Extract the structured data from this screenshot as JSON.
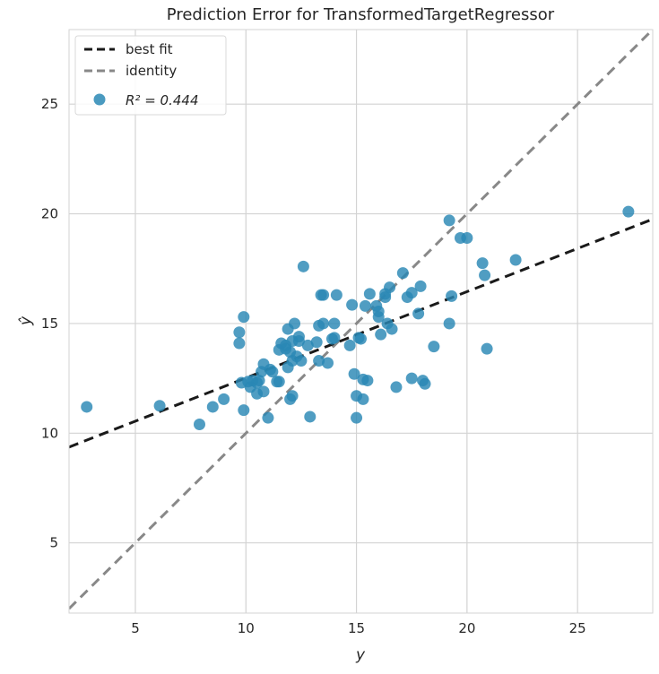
{
  "chart_data": {
    "type": "scatter",
    "title": "Prediction Error for TransformedTargetRegressor",
    "xlabel": "y",
    "ylabel": "ŷ",
    "xlim": [
      2,
      28.4
    ],
    "ylim": [
      1.8,
      28.4
    ],
    "xticks": [
      5,
      10,
      15,
      20,
      25
    ],
    "yticks": [
      5,
      10,
      15,
      20,
      25
    ],
    "grid": true,
    "legend_position": "top-left",
    "colors": {
      "points": "#2a88b5",
      "best_fit": "#1a1a1a",
      "identity": "#888888",
      "grid": "#d3d3d3",
      "background": "#ffffff"
    },
    "legend": [
      {
        "label": "best fit",
        "kind": "line",
        "style": "dashed",
        "color": "#1a1a1a"
      },
      {
        "label": "identity",
        "kind": "line",
        "style": "dashed",
        "color": "#888888"
      },
      {
        "label": "R² = 0.444",
        "kind": "marker",
        "color": "#2a88b5"
      }
    ],
    "best_fit": {
      "slope": 0.3936,
      "intercept": 8.58
    },
    "identity": {
      "slope": 1,
      "intercept": 0
    },
    "points": [
      [
        2.8,
        11.2
      ],
      [
        6.1,
        11.25
      ],
      [
        7.9,
        10.4
      ],
      [
        8.5,
        11.2
      ],
      [
        9.0,
        11.55
      ],
      [
        9.7,
        14.6
      ],
      [
        9.7,
        14.1
      ],
      [
        9.8,
        12.3
      ],
      [
        9.9,
        15.3
      ],
      [
        9.9,
        11.05
      ],
      [
        10.1,
        12.35
      ],
      [
        10.2,
        12.1
      ],
      [
        10.3,
        12.4
      ],
      [
        10.5,
        12.3
      ],
      [
        10.5,
        11.8
      ],
      [
        10.6,
        12.4
      ],
      [
        10.7,
        12.8
      ],
      [
        10.8,
        11.9
      ],
      [
        10.8,
        13.15
      ],
      [
        11.0,
        10.7
      ],
      [
        11.1,
        12.9
      ],
      [
        11.2,
        12.8
      ],
      [
        11.4,
        12.35
      ],
      [
        11.5,
        13.8
      ],
      [
        11.5,
        12.35
      ],
      [
        11.6,
        14.1
      ],
      [
        11.8,
        13.85
      ],
      [
        11.8,
        14.0
      ],
      [
        11.9,
        13.0
      ],
      [
        11.9,
        14.75
      ],
      [
        12.0,
        11.55
      ],
      [
        12.0,
        13.7
      ],
      [
        12.1,
        14.2
      ],
      [
        12.1,
        11.7
      ],
      [
        12.1,
        13.3
      ],
      [
        12.2,
        15.0
      ],
      [
        12.3,
        13.5
      ],
      [
        12.4,
        14.2
      ],
      [
        12.4,
        14.4
      ],
      [
        12.5,
        13.3
      ],
      [
        12.6,
        17.6
      ],
      [
        12.8,
        14.0
      ],
      [
        12.9,
        10.75
      ],
      [
        13.2,
        14.15
      ],
      [
        13.3,
        13.3
      ],
      [
        13.3,
        14.9
      ],
      [
        13.4,
        16.3
      ],
      [
        13.5,
        16.3
      ],
      [
        13.5,
        15.0
      ],
      [
        13.7,
        13.2
      ],
      [
        13.9,
        14.3
      ],
      [
        14.0,
        14.35
      ],
      [
        14.0,
        15.0
      ],
      [
        14.1,
        16.3
      ],
      [
        14.7,
        14.0
      ],
      [
        14.8,
        15.85
      ],
      [
        14.9,
        12.7
      ],
      [
        15.0,
        11.7
      ],
      [
        15.0,
        10.7
      ],
      [
        15.1,
        14.35
      ],
      [
        15.2,
        14.3
      ],
      [
        15.3,
        11.55
      ],
      [
        15.3,
        12.45
      ],
      [
        15.4,
        15.8
      ],
      [
        15.5,
        12.4
      ],
      [
        15.6,
        16.35
      ],
      [
        15.9,
        15.8
      ],
      [
        16.0,
        15.55
      ],
      [
        16.0,
        15.3
      ],
      [
        16.1,
        14.5
      ],
      [
        16.3,
        16.2
      ],
      [
        16.3,
        16.35
      ],
      [
        16.4,
        15.0
      ],
      [
        16.5,
        16.65
      ],
      [
        16.6,
        14.75
      ],
      [
        16.8,
        12.1
      ],
      [
        17.1,
        17.3
      ],
      [
        17.3,
        16.2
      ],
      [
        17.5,
        12.5
      ],
      [
        17.5,
        16.4
      ],
      [
        17.8,
        15.45
      ],
      [
        17.9,
        16.7
      ],
      [
        18.0,
        12.4
      ],
      [
        18.1,
        12.25
      ],
      [
        18.5,
        13.95
      ],
      [
        19.2,
        19.7
      ],
      [
        19.2,
        15.0
      ],
      [
        19.3,
        16.25
      ],
      [
        19.7,
        18.9
      ],
      [
        20.0,
        18.9
      ],
      [
        20.7,
        17.75
      ],
      [
        20.8,
        17.2
      ],
      [
        20.9,
        13.85
      ],
      [
        22.2,
        17.9
      ],
      [
        27.3,
        20.1
      ]
    ]
  }
}
